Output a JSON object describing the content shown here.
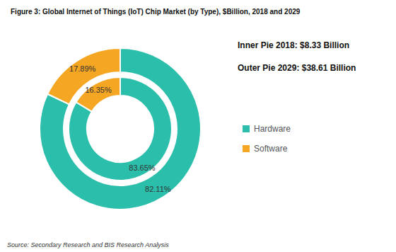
{
  "chart_data": {
    "type": "pie",
    "title": "Figure 3: Global Internet of Things (IoT) Chip Market (by Type), $Billion, 2018 and 2029",
    "source": "Source: Secondary Research and BIS Research Analysis",
    "annotations": [
      "Inner Pie 2018: $8.33 Billion",
      "Outer Pie 2029: $38.61 Billion"
    ],
    "categories": [
      "Hardware",
      "Software"
    ],
    "colors": [
      "#2BBFAB",
      "#F5A623"
    ],
    "series": [
      {
        "values": [
          83.65,
          16.35
        ],
        "value_labels": [
          "83.65%",
          "16.35%"
        ]
      },
      {
        "values": [
          82.11,
          17.89
        ],
        "value_labels": [
          "82.11%",
          "17.89%"
        ]
      }
    ],
    "data_labels": true,
    "legend": "right"
  }
}
